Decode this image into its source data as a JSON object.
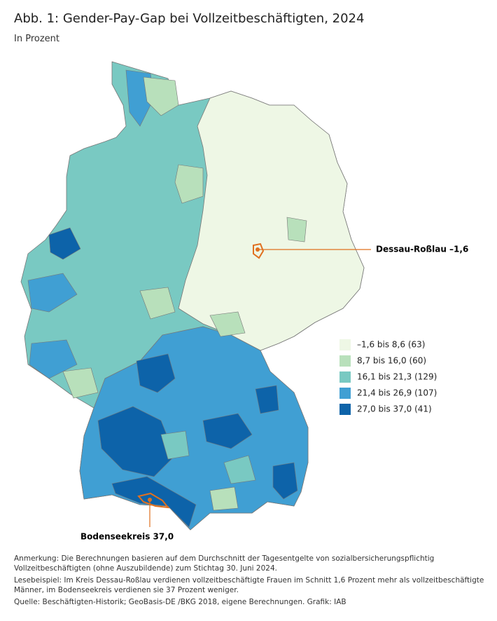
{
  "header": {
    "title": "Abb. 1: Gender-Pay-Gap bei Vollzeitbeschäftigten, 2024",
    "subtitle": "In Prozent"
  },
  "legend": {
    "items": [
      {
        "label": "–1,6 bis 8,6 (63)",
        "color": "#eef7e5"
      },
      {
        "label": "8,7 bis 16,0 (60)",
        "color": "#b8e0bb"
      },
      {
        "label": "16,1 bis 21,3 (129)",
        "color": "#79c9c2"
      },
      {
        "label": "21,4 bis 26,9 (107)",
        "color": "#409fd3"
      },
      {
        "label": "27,0 bis 37,0 (41)",
        "color": "#0d63a9"
      }
    ]
  },
  "annotations": [
    {
      "label": "Dessau-Roßlau –1,6"
    },
    {
      "label": "Bodenseekreis 37,0"
    }
  ],
  "notes": [
    "Anmerkung: Die Berechnungen basieren auf dem Durchschnitt der Tagesentgelte von sozialbersicherungspflichtig Vollzeitbeschäftigten (ohne Auszubildende) zum Stichtag 30. Juni 2024.",
    "Lesebeispiel: Im Kreis Dessau-Roßlau verdienen vollzeitbeschäftigte Frauen im Schnitt 1,6 Prozent mehr als vollzeitbeschäftigte Männer, im Bodenseekreis verdienen sie 37 Prozent weniger.",
    "Quelle: Beschäftigten-Historik; GeoBasis-DE /BKG 2018, eigene Berechnungen. Grafik: IAB"
  ]
}
